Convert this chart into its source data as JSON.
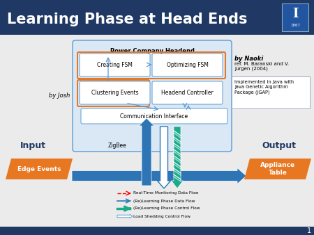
{
  "title": "Learning Phase at Head Ends",
  "title_color": "#FFFFFF",
  "header_bg": "#1F3864",
  "slide_bg": "#F0F0F0",
  "orange": "#E87722",
  "blue_dark": "#1F3864",
  "blue_mid": "#2E75B6",
  "blue_light": "#C5D9F1",
  "green_teal": "#1AAB8A",
  "slide_number": "1",
  "headend_title": "Power Company Headend",
  "box1": "Creating FSM",
  "box2": "Optimizing FSM",
  "box3": "Clustering Events",
  "box4": "Headend Controller",
  "box5": "Communication Interface",
  "input_label": "Input",
  "output_label": "Output",
  "input_box": "Edge Events",
  "output_box": "Appliance\nTable",
  "zigbee": "ZigBee",
  "by_naoki": "by Naoki",
  "ref_text": "ref. M. Baranski and V.\nJurgen (2004)",
  "impl_text": "Implemented in Java with\nJava Genetic Algorithm\nPackage (JGAP)",
  "by_josh": "by Josh",
  "legend1": "Real-Time Monitoring Data Flow",
  "legend2": "(Re)Learning Phase Data Flow",
  "legend3": "(Re)Learning Phase Control Flow",
  "legend4": "Load Shedding Control Flow"
}
